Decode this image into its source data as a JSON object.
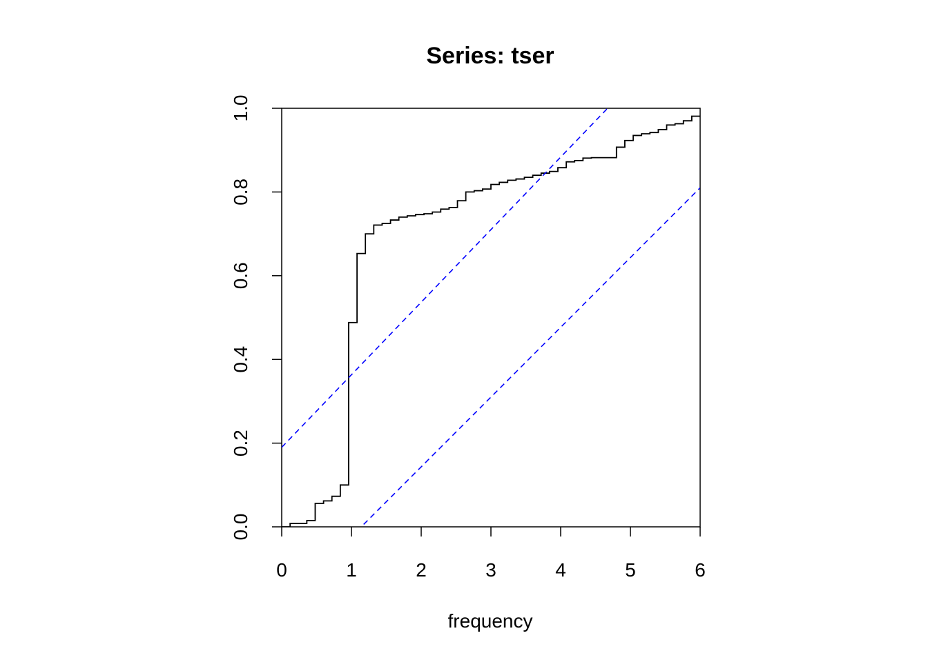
{
  "chart_data": {
    "type": "line",
    "title": "Series:  tser",
    "xlabel": "frequency",
    "ylabel": "",
    "xlim": [
      0,
      6
    ],
    "ylim": [
      0,
      1
    ],
    "x_ticks": [
      "0",
      "1",
      "2",
      "3",
      "4",
      "5",
      "6"
    ],
    "y_ticks": [
      "0.0",
      "0.2",
      "0.4",
      "0.6",
      "0.8",
      "1.0"
    ],
    "grid": false,
    "legend": "none",
    "colors": {
      "series": "#000000",
      "bands": "#0000ff"
    },
    "series": [
      {
        "style": "step",
        "x": [
          0,
          0.12,
          0.36,
          0.48,
          0.6,
          0.72,
          0.84,
          0.96,
          1.08,
          1.2,
          1.32,
          1.44,
          1.56,
          1.68,
          1.8,
          1.92,
          2.04,
          2.16,
          2.28,
          2.4,
          2.52,
          2.64,
          2.76,
          2.88,
          3.0,
          3.12,
          3.24,
          3.36,
          3.48,
          3.6,
          3.72,
          3.84,
          3.96,
          4.08,
          4.2,
          4.32,
          4.44,
          4.56,
          4.68,
          4.8,
          4.92,
          5.04,
          5.16,
          5.28,
          5.4,
          5.52,
          5.64,
          5.76,
          5.88,
          6.0
        ],
        "y": [
          0.0,
          0.008,
          0.015,
          0.056,
          0.062,
          0.073,
          0.1,
          0.488,
          0.653,
          0.7,
          0.721,
          0.725,
          0.733,
          0.74,
          0.743,
          0.746,
          0.748,
          0.752,
          0.759,
          0.763,
          0.779,
          0.8,
          0.803,
          0.807,
          0.818,
          0.823,
          0.828,
          0.831,
          0.835,
          0.84,
          0.845,
          0.849,
          0.858,
          0.872,
          0.875,
          0.881,
          0.882,
          0.882,
          0.882,
          0.907,
          0.923,
          0.935,
          0.939,
          0.942,
          0.949,
          0.96,
          0.963,
          0.97,
          0.981,
          0.981
        ]
      },
      {
        "style": "dashed",
        "x": [
          0,
          6
        ],
        "y": [
          0.19,
          1.23
        ]
      },
      {
        "style": "dashed",
        "x": [
          0,
          6
        ],
        "y": [
          -0.19,
          0.81
        ]
      }
    ]
  }
}
